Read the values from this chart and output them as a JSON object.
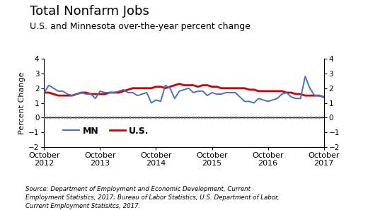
{
  "title_line1": "Total Nonfarm Jobs",
  "title_line2": "U.S. and Minnesota over-the-year percent change",
  "ylabel": "Percent Change",
  "ylim": [
    -2,
    4
  ],
  "yticks": [
    -2,
    -1,
    0,
    1,
    2,
    3,
    4
  ],
  "source_text": "Source: Department of Employment and Economic Development, Current\nEmployment Statistics, 2017; Bureau of Labor Statistics, U.S. Department of Labor,\nCurrent Employment Statisitcs, 2017.",
  "mn_color": "#4472C4",
  "us_color": "#CC0000",
  "mn_linewidth": 1.4,
  "us_linewidth": 2.0,
  "background_color": "#FFFFFF",
  "mn_data": [
    1.7,
    2.2,
    2.0,
    1.8,
    1.8,
    1.6,
    1.5,
    1.6,
    1.7,
    1.6,
    1.6,
    1.3,
    1.8,
    1.7,
    1.7,
    1.7,
    1.8,
    1.9,
    1.7,
    1.7,
    1.5,
    1.6,
    1.7,
    1.0,
    1.2,
    1.1,
    2.2,
    2.0,
    1.3,
    1.8,
    1.9,
    2.0,
    1.7,
    1.8,
    1.8,
    1.5,
    1.7,
    1.6,
    1.6,
    1.7,
    1.7,
    1.7,
    1.4,
    1.1,
    1.1,
    1.0,
    1.3,
    1.2,
    1.1,
    1.2,
    1.3,
    1.6,
    1.7,
    1.4,
    1.3,
    1.3,
    2.8,
    2.0,
    1.5,
    1.5,
    1.4
  ],
  "us_data": [
    1.7,
    1.7,
    1.6,
    1.5,
    1.5,
    1.5,
    1.5,
    1.6,
    1.7,
    1.7,
    1.6,
    1.6,
    1.6,
    1.6,
    1.7,
    1.7,
    1.7,
    1.8,
    1.9,
    2.0,
    2.0,
    2.0,
    2.0,
    2.0,
    2.1,
    2.1,
    2.0,
    2.1,
    2.2,
    2.3,
    2.2,
    2.2,
    2.2,
    2.1,
    2.2,
    2.2,
    2.1,
    2.1,
    2.0,
    2.0,
    2.0,
    2.0,
    2.0,
    2.0,
    1.9,
    1.9,
    1.8,
    1.8,
    1.8,
    1.8,
    1.8,
    1.8,
    1.7,
    1.7,
    1.6,
    1.6,
    1.5,
    1.5,
    1.5,
    1.5,
    1.4
  ],
  "x_tick_positions": [
    0,
    12,
    24,
    36,
    48,
    60
  ],
  "x_tick_labels": [
    "October\n2012",
    "October\n2013",
    "October\n2014",
    "October\n2015",
    "October\n2016",
    "October\n2017"
  ],
  "legend_labels": [
    "MN",
    "U.S."
  ],
  "zero_line_color": "#000000",
  "tick_dot_color": "#888888"
}
